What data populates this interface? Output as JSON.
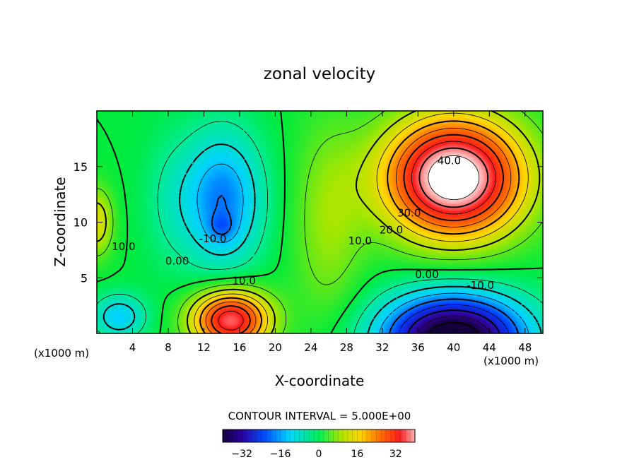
{
  "chart_data": {
    "type": "heatmap",
    "title": "zonal velocity",
    "xlabel": "X-coordinate",
    "ylabel": "Z-coordinate",
    "x_unit_left": "(x1000 m)",
    "x_unit_right": "(x1000 m)",
    "xlim": [
      0,
      50
    ],
    "ylim": [
      0,
      20
    ],
    "x_ticks": [
      4,
      8,
      12,
      16,
      20,
      24,
      28,
      32,
      36,
      40,
      44,
      48
    ],
    "y_ticks": [
      5,
      10,
      15
    ],
    "contour_interval_label": "CONTOUR INTERVAL = 5.000E+00",
    "contour_interval": 5,
    "colorbar_range": [
      -40,
      40
    ],
    "colorbar_ticks": [
      "−32",
      "−16",
      "0",
      "16",
      "32"
    ],
    "colorbar_tick_values": [
      -32,
      -16,
      0,
      16,
      32
    ],
    "contour_labels": [
      {
        "text": "40.0",
        "x": 39.5,
        "z": 15.2
      },
      {
        "text": "30.0",
        "x": 35.0,
        "z": 10.5
      },
      {
        "text": "20.0",
        "x": 33.0,
        "z": 9.0
      },
      {
        "text": "10.0",
        "x": 29.5,
        "z": 8.0
      },
      {
        "text": "0.00",
        "x": 37.0,
        "z": 5.0
      },
      {
        "text": "-10.0",
        "x": 43.0,
        "z": 4.0
      },
      {
        "text": "10.0",
        "x": 16.5,
        "z": 4.4
      },
      {
        "text": "0.00",
        "x": 9.0,
        "z": 6.2
      },
      {
        "text": "-10.0",
        "x": 13.0,
        "z": 8.2
      },
      {
        "text": "10.0",
        "x": 3.0,
        "z": 7.5
      }
    ],
    "features": [
      {
        "kind": "max",
        "x": 40,
        "z": 14,
        "value": 45
      },
      {
        "kind": "min",
        "x": 40,
        "z": 0.5,
        "value": -38
      },
      {
        "kind": "max",
        "x": 15,
        "z": 1.5,
        "value": 33
      },
      {
        "kind": "min",
        "x": 14,
        "z": 13,
        "value": -12
      }
    ]
  }
}
